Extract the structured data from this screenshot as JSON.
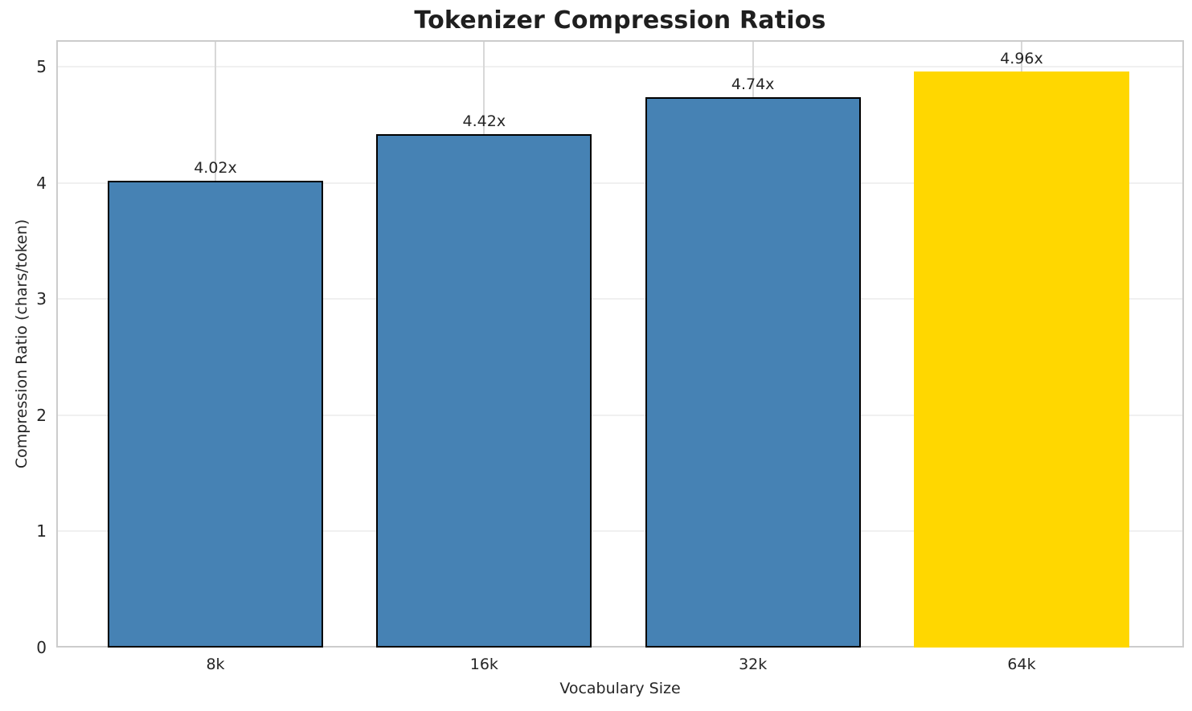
{
  "chart_data": {
    "type": "bar",
    "title": "Tokenizer Compression Ratios",
    "xlabel": "Vocabulary Size",
    "ylabel": "Compression Ratio (chars/token)",
    "categories": [
      "8k",
      "16k",
      "32k",
      "64k"
    ],
    "values": [
      4.02,
      4.42,
      4.74,
      4.96
    ],
    "bar_labels": [
      "4.02x",
      "4.42x",
      "4.74x",
      "4.96x"
    ],
    "bar_colors": [
      "#4682B4",
      "#4682B4",
      "#4682B4",
      "#FFD700"
    ],
    "bar_edge_colors": [
      "#000000",
      "#000000",
      "#000000",
      "transparent"
    ],
    "highlight_index": 3,
    "ylim": [
      0,
      5.23
    ],
    "yticks": [
      "0",
      "1",
      "2",
      "3",
      "4",
      "5"
    ],
    "grid": true,
    "legend_position": "none"
  },
  "style": {
    "bar_default_color": "#4682B4",
    "bar_highlight_color": "#FFD700",
    "bar_edge_color": "#000000",
    "axes_border_color": "#cccccc",
    "grid_h_color": "#f0f0f0",
    "grid_v_color": "#d8d8d8",
    "text_color": "#262626",
    "title_color": "#1f1f1f",
    "background_color": "#ffffff"
  }
}
